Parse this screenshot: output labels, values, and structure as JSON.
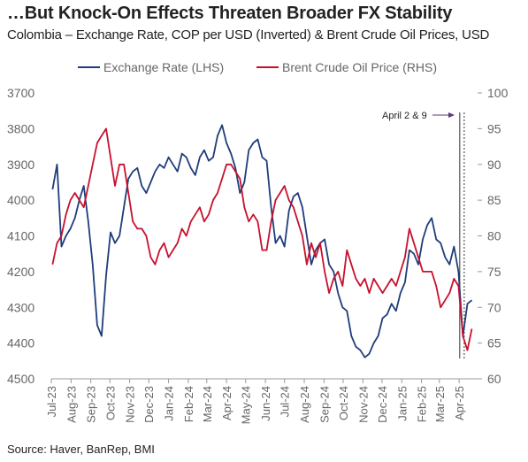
{
  "title": "…But Knock-On Effects Threaten Broader FX Stability",
  "subtitle": "Colombia – Exchange Rate, COP per USD (Inverted) & Brent Crude Oil Prices, USD",
  "source": "Source: Haver, BanRep, BMI",
  "colors": {
    "exchange": "#1f3d7a",
    "oil": "#c8102e",
    "axis": "#999999",
    "annotation": "#333333"
  },
  "chart_data": {
    "type": "line",
    "x_tick_labels": [
      "Jul-23",
      "Aug-23",
      "Sep-23",
      "Oct-23",
      "Nov-23",
      "Dec-23",
      "Jan-24",
      "Feb-24",
      "Mar-24",
      "Apr-24",
      "May-24",
      "Jun-24",
      "Jul-24",
      "Aug-24",
      "Sep-24",
      "Oct-24",
      "Nov-24",
      "Dec-24",
      "Jan-25",
      "Feb-25",
      "Mar-25",
      "Apr-25"
    ],
    "x_range": [
      "2023-07-01",
      "2025-04-30"
    ],
    "left_axis": {
      "label": "Exchange Rate (LHS)",
      "ylim": [
        3700,
        4500
      ],
      "inverted": true,
      "ticks": [
        3700,
        3800,
        3900,
        4000,
        4100,
        4200,
        4300,
        4400,
        4500
      ]
    },
    "right_axis": {
      "label": "Brent Crude Oil Price (RHS)",
      "ylim": [
        60,
        100
      ],
      "ticks": [
        60,
        65,
        70,
        75,
        80,
        85,
        90,
        95,
        100
      ]
    },
    "legend": {
      "position": "top",
      "entries": [
        "Exchange Rate (LHS)",
        "Brent Crude Oil Price (RHS)"
      ]
    },
    "annotation": {
      "text": "April 2 & 9",
      "dates": [
        "2025-04-02",
        "2025-04-09"
      ]
    },
    "series": [
      {
        "name": "Exchange Rate (LHS)",
        "axis": "left",
        "x": [
          "2023-07-03",
          "2023-07-10",
          "2023-07-17",
          "2023-07-24",
          "2023-07-31",
          "2023-08-07",
          "2023-08-14",
          "2023-08-21",
          "2023-08-28",
          "2023-09-04",
          "2023-09-11",
          "2023-09-18",
          "2023-09-25",
          "2023-10-02",
          "2023-10-09",
          "2023-10-16",
          "2023-10-23",
          "2023-10-30",
          "2023-11-06",
          "2023-11-13",
          "2023-11-20",
          "2023-11-27",
          "2023-12-04",
          "2023-12-11",
          "2023-12-18",
          "2023-12-25",
          "2024-01-01",
          "2024-01-08",
          "2024-01-15",
          "2024-01-22",
          "2024-01-29",
          "2024-02-05",
          "2024-02-12",
          "2024-02-19",
          "2024-02-26",
          "2024-03-04",
          "2024-03-11",
          "2024-03-18",
          "2024-03-25",
          "2024-04-01",
          "2024-04-08",
          "2024-04-15",
          "2024-04-22",
          "2024-04-29",
          "2024-05-06",
          "2024-05-13",
          "2024-05-20",
          "2024-05-27",
          "2024-06-03",
          "2024-06-10",
          "2024-06-17",
          "2024-06-24",
          "2024-07-01",
          "2024-07-08",
          "2024-07-15",
          "2024-07-22",
          "2024-07-29",
          "2024-08-05",
          "2024-08-12",
          "2024-08-19",
          "2024-08-26",
          "2024-09-02",
          "2024-09-09",
          "2024-09-16",
          "2024-09-23",
          "2024-09-30",
          "2024-10-07",
          "2024-10-14",
          "2024-10-21",
          "2024-10-28",
          "2024-11-04",
          "2024-11-11",
          "2024-11-18",
          "2024-11-25",
          "2024-12-02",
          "2024-12-09",
          "2024-12-16",
          "2024-12-23",
          "2024-12-30",
          "2025-01-06",
          "2025-01-13",
          "2025-01-20",
          "2025-01-27",
          "2025-02-03",
          "2025-02-10",
          "2025-02-17",
          "2025-02-24",
          "2025-03-03",
          "2025-03-10",
          "2025-03-17",
          "2025-03-24",
          "2025-03-31",
          "2025-04-07",
          "2025-04-14",
          "2025-04-21"
        ],
        "values": [
          3970,
          3900,
          4130,
          4100,
          4080,
          4050,
          4000,
          3960,
          4060,
          4180,
          4350,
          4380,
          4210,
          4090,
          4120,
          4100,
          4020,
          3940,
          3920,
          3910,
          3960,
          3980,
          3950,
          3920,
          3900,
          3910,
          3880,
          3900,
          3920,
          3870,
          3880,
          3910,
          3930,
          3880,
          3860,
          3890,
          3880,
          3820,
          3790,
          3840,
          3870,
          3910,
          3980,
          3950,
          3860,
          3840,
          3830,
          3880,
          3890,
          4020,
          4120,
          4100,
          4130,
          4030,
          3990,
          3980,
          4020,
          4100,
          4180,
          4140,
          4120,
          4110,
          4180,
          4200,
          4260,
          4300,
          4310,
          4380,
          4410,
          4420,
          4440,
          4430,
          4400,
          4380,
          4330,
          4320,
          4290,
          4310,
          4260,
          4230,
          4140,
          4150,
          4180,
          4110,
          4070,
          4050,
          4110,
          4120,
          4160,
          4180,
          4130,
          4200,
          4380,
          4290,
          4280
        ]
      },
      {
        "name": "Brent Crude Oil Price (RHS)",
        "axis": "right",
        "x": [
          "2023-07-03",
          "2023-07-10",
          "2023-07-17",
          "2023-07-24",
          "2023-07-31",
          "2023-08-07",
          "2023-08-14",
          "2023-08-21",
          "2023-08-28",
          "2023-09-04",
          "2023-09-11",
          "2023-09-18",
          "2023-09-25",
          "2023-10-02",
          "2023-10-09",
          "2023-10-16",
          "2023-10-23",
          "2023-10-30",
          "2023-11-06",
          "2023-11-13",
          "2023-11-20",
          "2023-11-27",
          "2023-12-04",
          "2023-12-11",
          "2023-12-18",
          "2023-12-25",
          "2024-01-01",
          "2024-01-08",
          "2024-01-15",
          "2024-01-22",
          "2024-01-29",
          "2024-02-05",
          "2024-02-12",
          "2024-02-19",
          "2024-02-26",
          "2024-03-04",
          "2024-03-11",
          "2024-03-18",
          "2024-03-25",
          "2024-04-01",
          "2024-04-08",
          "2024-04-15",
          "2024-04-22",
          "2024-04-29",
          "2024-05-06",
          "2024-05-13",
          "2024-05-20",
          "2024-05-27",
          "2024-06-03",
          "2024-06-10",
          "2024-06-17",
          "2024-06-24",
          "2024-07-01",
          "2024-07-08",
          "2024-07-15",
          "2024-07-22",
          "2024-07-29",
          "2024-08-05",
          "2024-08-12",
          "2024-08-19",
          "2024-08-26",
          "2024-09-02",
          "2024-09-09",
          "2024-09-16",
          "2024-09-23",
          "2024-09-30",
          "2024-10-07",
          "2024-10-14",
          "2024-10-21",
          "2024-10-28",
          "2024-11-04",
          "2024-11-11",
          "2024-11-18",
          "2024-11-25",
          "2024-12-02",
          "2024-12-09",
          "2024-12-16",
          "2024-12-23",
          "2024-12-30",
          "2025-01-06",
          "2025-01-13",
          "2025-01-20",
          "2025-01-27",
          "2025-02-03",
          "2025-02-10",
          "2025-02-17",
          "2025-02-24",
          "2025-03-03",
          "2025-03-10",
          "2025-03-17",
          "2025-03-24",
          "2025-03-31",
          "2025-04-07",
          "2025-04-14",
          "2025-04-21"
        ],
        "values": [
          76,
          79,
          80,
          83,
          85,
          86,
          85,
          84,
          87,
          90,
          93,
          94,
          95,
          91,
          87,
          90,
          90,
          86,
          82,
          81,
          81,
          80,
          77,
          76,
          78,
          79,
          77,
          78,
          79,
          81,
          80,
          82,
          83,
          84,
          82,
          83,
          85,
          86,
          88,
          90,
          90,
          89,
          88,
          84,
          82,
          83,
          82,
          78,
          78,
          82,
          85,
          86,
          87,
          85,
          84,
          82,
          80,
          76,
          79,
          77,
          79,
          75,
          72,
          74,
          75,
          73,
          78,
          76,
          74,
          73,
          74,
          72,
          74,
          73,
          72,
          73,
          74,
          73,
          75,
          77,
          81,
          79,
          77,
          75,
          75,
          75,
          73,
          70,
          71,
          72,
          74,
          73,
          66,
          64,
          67
        ]
      }
    ]
  }
}
